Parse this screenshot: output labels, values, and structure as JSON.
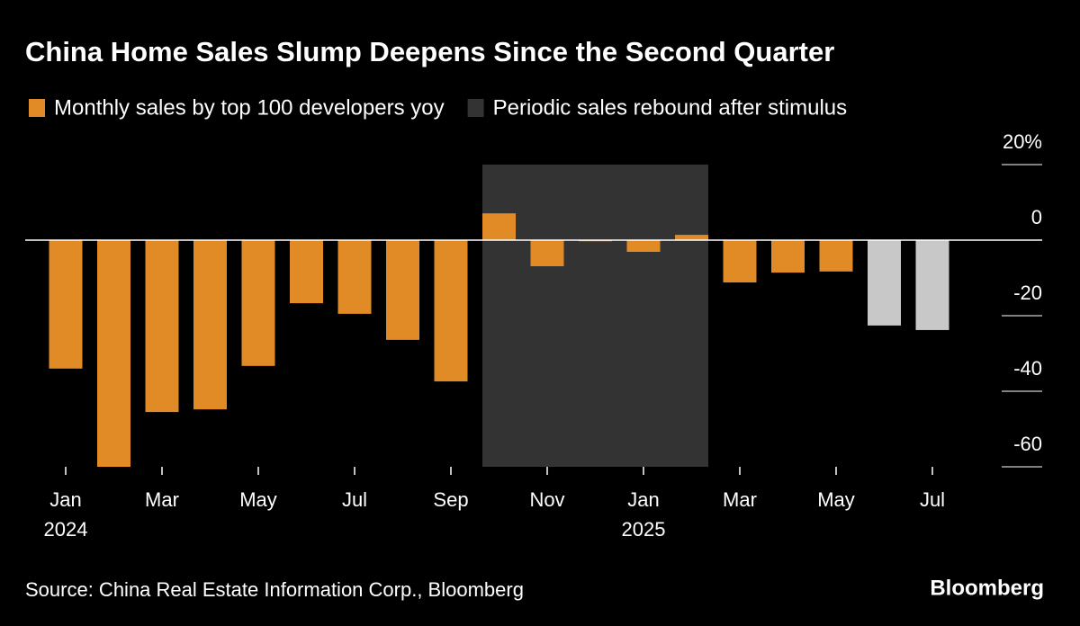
{
  "chart_data": {
    "type": "bar",
    "title": "China Home Sales Slump Deepens Since the Second Quarter",
    "source": "Source: China Real Estate Information Corp., Bloomberg",
    "brand": "Bloomberg",
    "categories": [
      "Jan",
      null,
      "Mar",
      null,
      "May",
      null,
      "Jul",
      null,
      "Sep",
      null,
      "Nov",
      null,
      "Jan",
      null,
      "Mar",
      null,
      "May",
      null,
      "Jul"
    ],
    "year_labels": [
      "2024",
      null,
      null,
      null,
      null,
      null,
      null,
      null,
      null,
      null,
      null,
      null,
      "2025",
      null,
      null,
      null,
      null,
      null,
      null
    ],
    "series": [
      {
        "name": "Monthly sales by top 100 developers yoy",
        "color": "#e08b26",
        "colors": [
          "#e08b26",
          "#e08b26",
          "#e08b26",
          "#e08b26",
          "#e08b26",
          "#e08b26",
          "#e08b26",
          "#e08b26",
          "#e08b26",
          "#e08b26",
          "#e08b26",
          "#e08b26",
          "#e08b26",
          "#e08b26",
          "#e08b26",
          "#e08b26",
          "#e08b26",
          "#c8c8c8",
          "#c8c8c8"
        ],
        "values": [
          -34,
          -60,
          -45.5,
          -44.8,
          -33.3,
          -16.7,
          -19.5,
          -26.4,
          -37.4,
          7.1,
          -6.9,
          -0.3,
          -3.1,
          1.4,
          -11.2,
          -8.6,
          -8.3,
          -22.6,
          -23.8
        ]
      }
    ],
    "bands": [
      {
        "name": "Periodic sales rebound after stimulus",
        "color": "#333333",
        "from": 9,
        "to": 13
      }
    ],
    "ylim": [
      -60,
      20
    ],
    "yticks": [
      {
        "value": 20,
        "label": "20%"
      },
      0,
      -20,
      -40,
      -60
    ]
  }
}
